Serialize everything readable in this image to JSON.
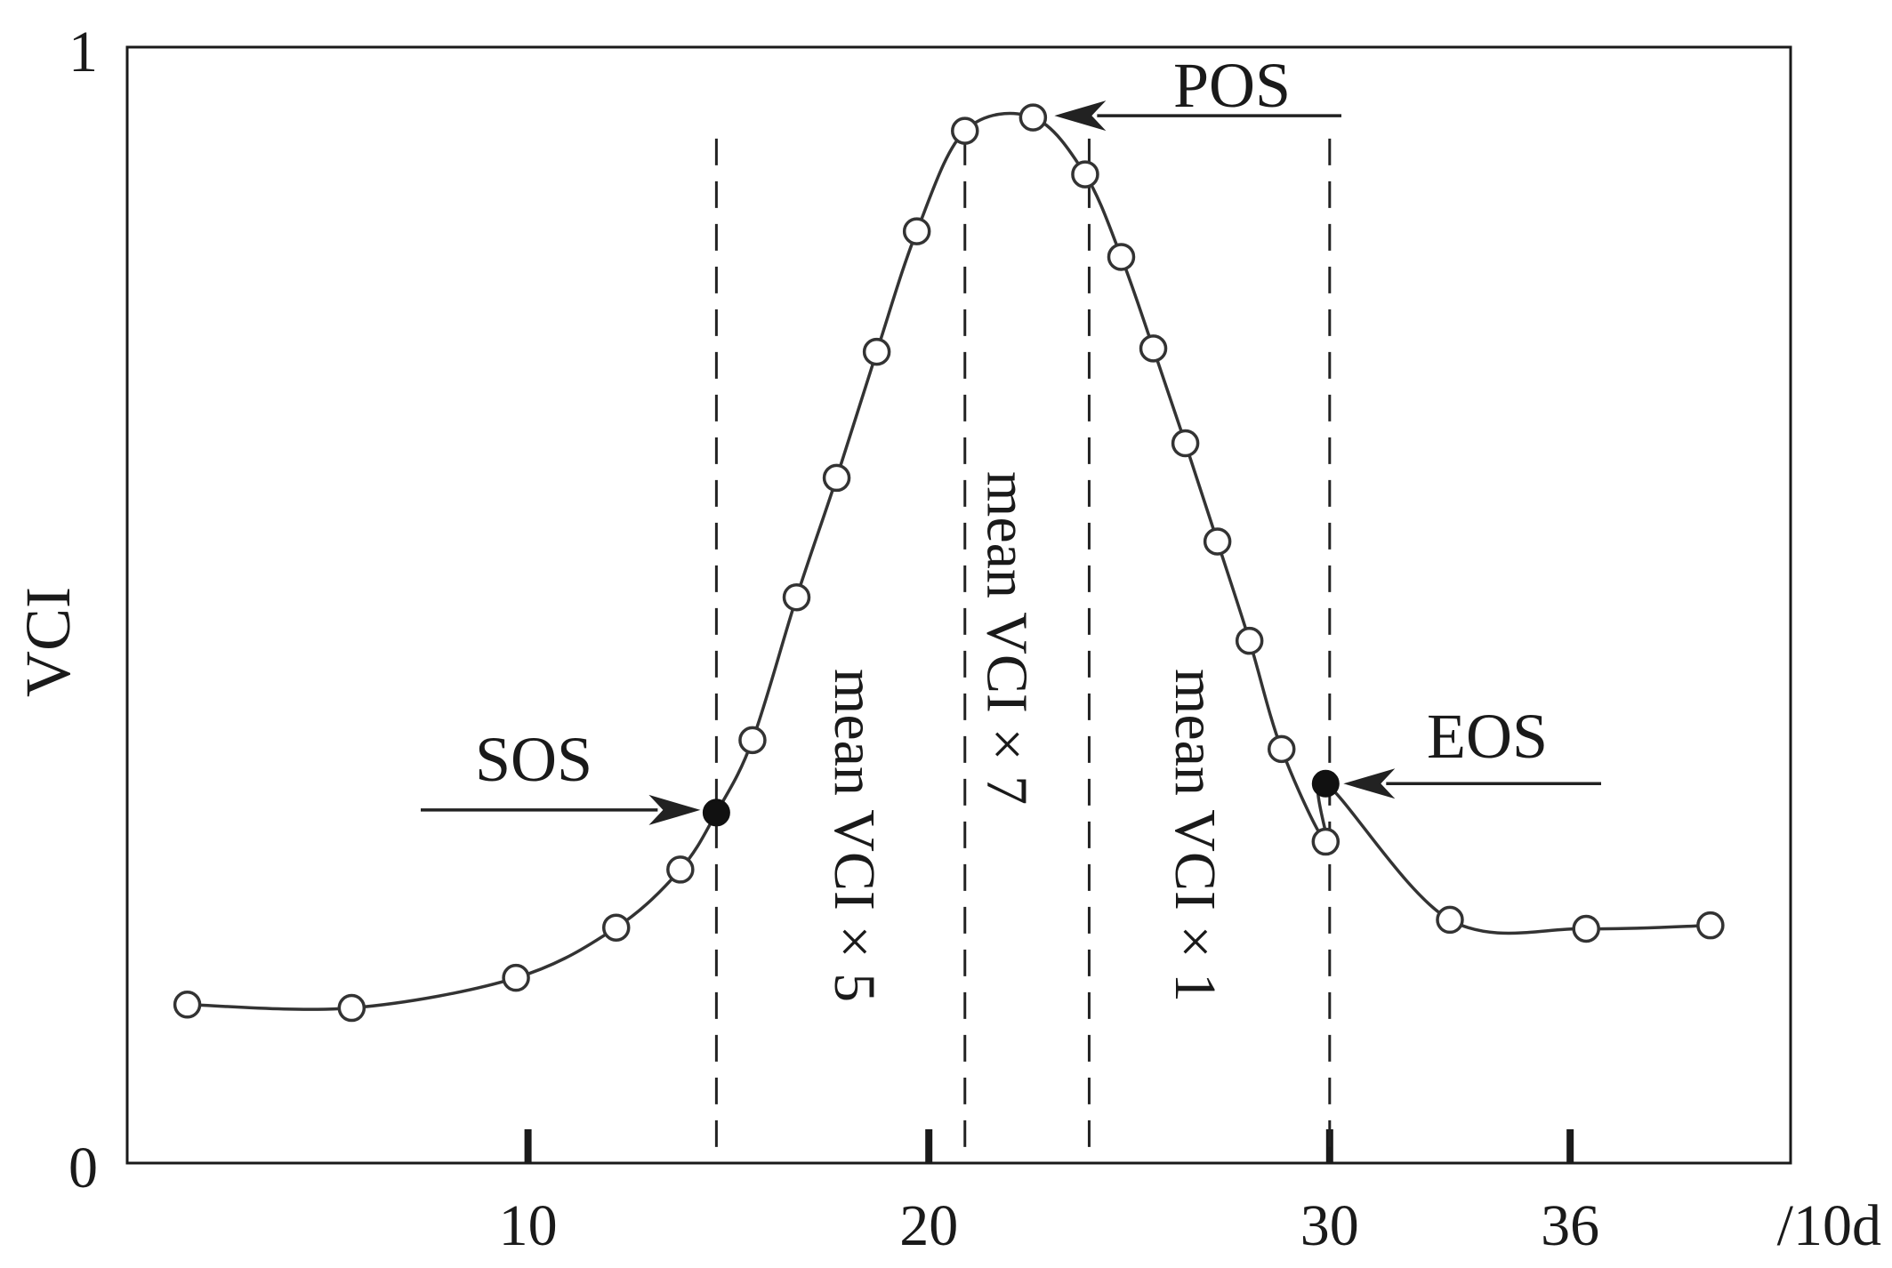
{
  "chart_data": {
    "type": "line",
    "title": "",
    "ylabel": "VCI",
    "xlabel": "/10d",
    "xlim": [
      0,
      41.5
    ],
    "ylim": [
      0,
      1
    ],
    "x_ticks": [
      {
        "value": 10,
        "label": "10"
      },
      {
        "value": 20,
        "label": "20"
      },
      {
        "value": 30,
        "label": "30"
      },
      {
        "value": 36,
        "label": "36"
      }
    ],
    "y_ticks": [
      {
        "value": 0,
        "label": "0"
      },
      {
        "value": 1,
        "label": "1"
      }
    ],
    "grid": false,
    "legend": "none",
    "series": [
      {
        "marker": "open-circle",
        "points": [
          [
            1.5,
            0.142
          ],
          [
            5.6,
            0.139
          ],
          [
            9.7,
            0.166
          ],
          [
            12.2,
            0.211
          ],
          [
            13.8,
            0.263
          ],
          [
            15.6,
            0.379
          ],
          [
            16.7,
            0.507
          ],
          [
            17.7,
            0.614
          ],
          [
            18.7,
            0.727
          ],
          [
            19.7,
            0.835
          ],
          [
            20.9,
            0.925
          ],
          [
            22.6,
            0.937
          ],
          [
            23.9,
            0.886
          ],
          [
            24.8,
            0.812
          ],
          [
            25.6,
            0.73
          ],
          [
            26.4,
            0.645
          ],
          [
            27.2,
            0.557
          ],
          [
            28.0,
            0.468
          ],
          [
            28.8,
            0.371
          ],
          [
            29.9,
            0.288
          ],
          [
            33.0,
            0.218
          ],
          [
            36.4,
            0.21
          ],
          [
            39.5,
            0.213
          ]
        ]
      }
    ],
    "key_points": [
      {
        "label": "SOS",
        "x": 14.7,
        "y": 0.314
      },
      {
        "label": "EOS",
        "x": 29.9,
        "y": 0.34
      }
    ],
    "peak": {
      "label": "POS",
      "x": 22.6,
      "y": 0.937
    },
    "dashed_lines_x": [
      14.7,
      20.9,
      24.0,
      30.0
    ],
    "region_labels": [
      {
        "text": "mean VCI × 5",
        "x": 18.2
      },
      {
        "text": "mean VCI × 7",
        "x": 22.0
      },
      {
        "text": "mean VCI × 1",
        "x": 26.7
      }
    ],
    "colors": {
      "line": "#333333",
      "marker_fill": "#ffffff",
      "key_point": "#111111"
    }
  }
}
